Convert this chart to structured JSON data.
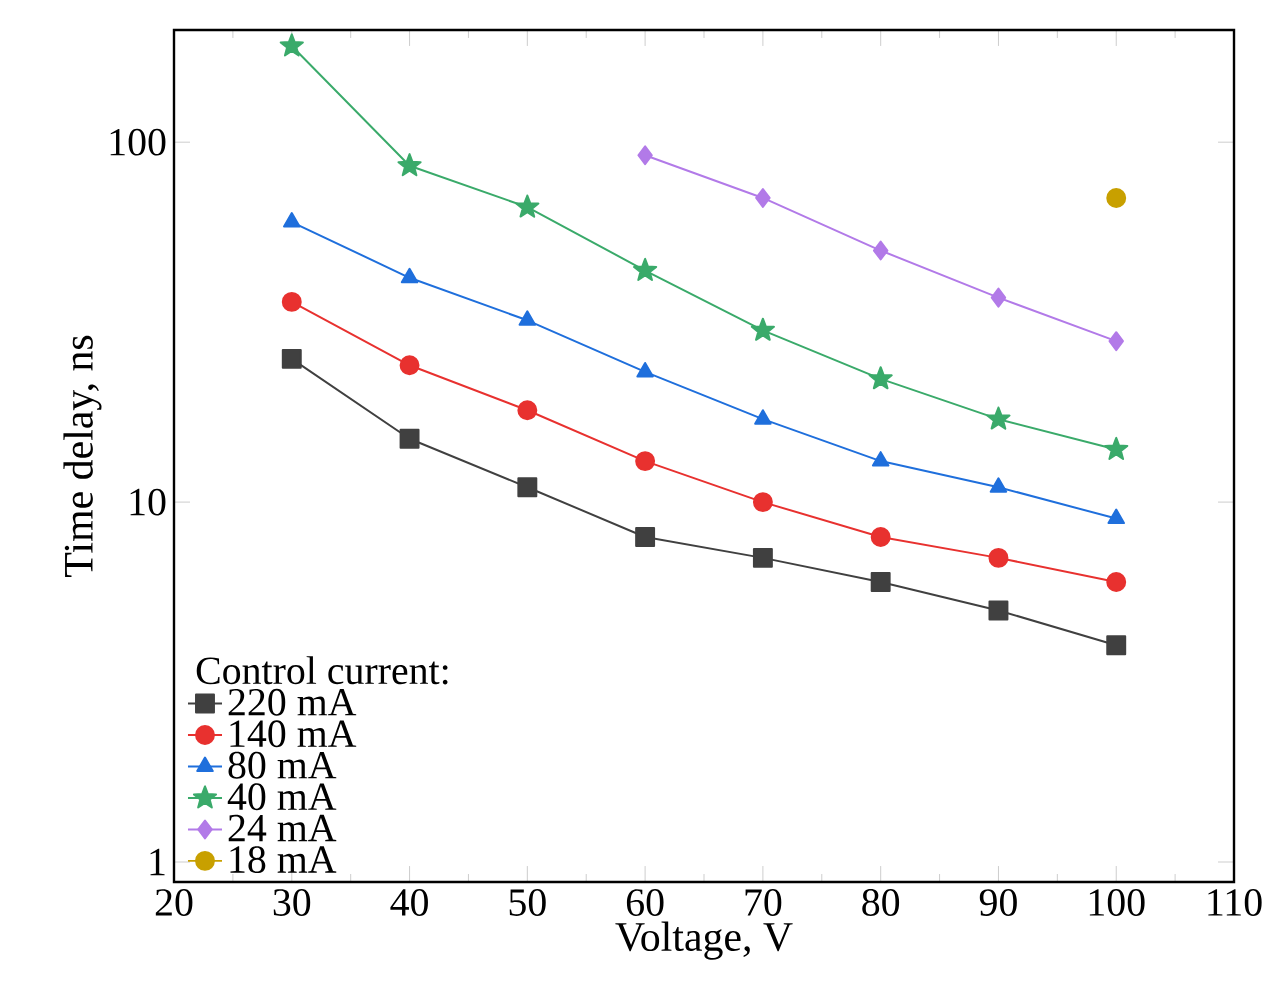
{
  "chart_data": {
    "type": "line",
    "xlabel": "Voltage, V",
    "ylabel": "Time delay, ns",
    "legend_title": "Control current:",
    "x": [
      30,
      40,
      50,
      60,
      70,
      80,
      90,
      100
    ],
    "series": [
      {
        "name": "220 mA",
        "color": "#404040",
        "marker": "square",
        "values": [
          25,
          15,
          11,
          8,
          7,
          6,
          5,
          4
        ]
      },
      {
        "name": "140 mA",
        "color": "#e8312f",
        "marker": "circle",
        "values": [
          36,
          24,
          18,
          13,
          10,
          8,
          7,
          6
        ]
      },
      {
        "name": "80 mA",
        "color": "#1f6fdc",
        "marker": "triangle",
        "values": [
          60,
          42,
          32,
          23,
          17,
          13,
          11,
          9
        ]
      },
      {
        "name": "40 mA",
        "color": "#3aaa6a",
        "marker": "star",
        "values": [
          185,
          86,
          66,
          44,
          30,
          22,
          17,
          14
        ]
      },
      {
        "name": "24 mA",
        "color": "#b27ae8",
        "marker": "diamond",
        "values": [
          null,
          null,
          null,
          92,
          70,
          50,
          37,
          28
        ]
      },
      {
        "name": "18 mA",
        "color": "#c8a000",
        "marker": "circle",
        "values": [
          null,
          null,
          null,
          null,
          null,
          null,
          null,
          70
        ]
      }
    ],
    "xlim": [
      20,
      110
    ],
    "ylim": [
      0.88,
      205
    ],
    "xticks": [
      20,
      30,
      40,
      50,
      60,
      70,
      80,
      90,
      100,
      110
    ],
    "yticks": [
      1,
      10,
      100
    ],
    "log": "y",
    "grid": false,
    "legend": "bottom left"
  }
}
